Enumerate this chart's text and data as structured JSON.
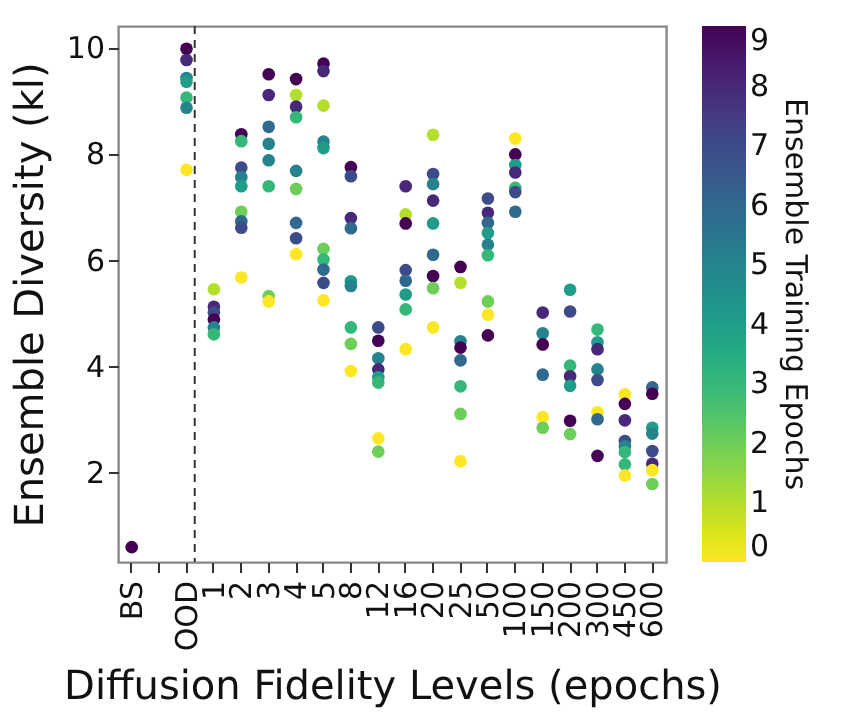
{
  "chart_data": {
    "type": "scatter",
    "xlabel": "Diffusion Fidelity Levels (epochs)",
    "ylabel": "Ensemble Diversity (kl)",
    "clabel": "Ensemble Training Epochs",
    "categories": [
      "BS",
      null,
      "OOD",
      "1",
      "2",
      "3",
      "4",
      "5",
      "8",
      "12",
      "16",
      "20",
      "25",
      "50",
      "100",
      "150",
      "200",
      "300",
      "450",
      "600"
    ],
    "ylim": [
      0.3,
      10.4
    ],
    "yticks": [
      2,
      4,
      6,
      8,
      10
    ],
    "clim": [
      0,
      9
    ],
    "cticks": [
      0,
      1,
      2,
      3,
      4,
      5,
      6,
      7,
      8,
      9
    ],
    "grid": false,
    "marker": "circle",
    "ref_lines": [
      {
        "axis": "x",
        "value": "OOD",
        "line_style": "dashed",
        "color": "#333333"
      }
    ],
    "series": [
      {
        "x": [
          "BS",
          "OOD",
          "OOD",
          "OOD",
          "OOD",
          "OOD",
          "OOD",
          "OOD",
          "1",
          "1",
          "1",
          "1",
          "1",
          "1",
          "2",
          "2",
          "2",
          "2",
          "2",
          "2",
          "2",
          "2",
          "2",
          "3",
          "3",
          "3",
          "3",
          "3",
          "3",
          "3",
          "3",
          "4",
          "4",
          "4",
          "4",
          "4",
          "4",
          "4",
          "4",
          "4",
          "5",
          "5",
          "5",
          "5",
          "5",
          "5",
          "5",
          "5",
          "5",
          "5",
          "8",
          "8",
          "8",
          "8",
          "8",
          "8",
          "8",
          "8",
          "8",
          "12",
          "12",
          "12",
          "12",
          "12",
          "12",
          "12",
          "12",
          "16",
          "16",
          "16",
          "16",
          "16",
          "16",
          "16",
          "16",
          "20",
          "20",
          "20",
          "20",
          "20",
          "20",
          "20",
          "20",
          "20",
          "25",
          "25",
          "25",
          "25",
          "25",
          "25",
          "25",
          "25",
          "50",
          "50",
          "50",
          "50",
          "50",
          "50",
          "50",
          "50",
          "50",
          "100",
          "100",
          "100",
          "100",
          "100",
          "100",
          "100",
          "150",
          "150",
          "150",
          "150",
          "150",
          "150",
          "200",
          "200",
          "200",
          "200",
          "200",
          "200",
          "200",
          "300",
          "300",
          "300",
          "300",
          "300",
          "300",
          "300",
          "300",
          "450",
          "450",
          "450",
          "450",
          "450",
          "450",
          "450",
          "450",
          "600",
          "600",
          "600",
          "600",
          "600",
          "600",
          "600",
          "600"
        ],
        "values": [
          0.58,
          9.97,
          9.76,
          9.42,
          9.35,
          9.05,
          8.86,
          7.69,
          5.44,
          5.11,
          5.0,
          4.87,
          4.72,
          4.59,
          8.36,
          8.23,
          7.73,
          7.55,
          7.38,
          6.9,
          6.72,
          6.6,
          5.66,
          9.49,
          9.1,
          8.5,
          8.18,
          7.87,
          7.38,
          5.31,
          5.21,
          9.4,
          9.1,
          8.88,
          8.68,
          7.67,
          7.33,
          6.69,
          6.4,
          6.1,
          9.69,
          9.55,
          8.9,
          8.22,
          8.1,
          6.2,
          6.0,
          5.81,
          5.56,
          5.23,
          7.74,
          7.57,
          6.78,
          6.59,
          5.59,
          5.5,
          4.72,
          4.41,
          3.9,
          4.72,
          4.47,
          4.14,
          3.93,
          3.78,
          3.68,
          2.63,
          2.38,
          7.38,
          6.85,
          6.68,
          5.8,
          5.6,
          5.34,
          5.06,
          4.31,
          8.35,
          7.61,
          7.42,
          7.11,
          6.68,
          6.09,
          5.69,
          5.46,
          4.72,
          5.86,
          5.56,
          4.46,
          4.34,
          4.1,
          3.61,
          3.09,
          2.2,
          7.15,
          6.88,
          6.69,
          6.5,
          6.28,
          6.08,
          5.21,
          4.96,
          4.57,
          8.28,
          7.98,
          7.78,
          7.64,
          7.35,
          7.27,
          6.9,
          5.0,
          4.61,
          4.4,
          3.83,
          3.03,
          2.83,
          5.43,
          5.02,
          4.0,
          3.8,
          3.62,
          2.96,
          2.71,
          4.68,
          4.44,
          4.31,
          3.93,
          3.73,
          3.12,
          2.99,
          2.3,
          3.46,
          3.28,
          2.97,
          2.58,
          2.48,
          2.37,
          2.14,
          1.93,
          3.59,
          3.47,
          2.83,
          2.72,
          2.39,
          2.15,
          2.03,
          1.77
        ],
        "cvalues": [
          9,
          9,
          8,
          5,
          4,
          3,
          5,
          0,
          1,
          8,
          7,
          9,
          5,
          3,
          9,
          3,
          7,
          5,
          4,
          2,
          6,
          7,
          0,
          9,
          8,
          6,
          5,
          5,
          3,
          2,
          0,
          9,
          1,
          8,
          3,
          5,
          2,
          6,
          7,
          0,
          9,
          8,
          1,
          5,
          4,
          2,
          3,
          6,
          7,
          0,
          9,
          7,
          8,
          6,
          4,
          5,
          3,
          2,
          0,
          7,
          9,
          5,
          8,
          4,
          3,
          0,
          2,
          8,
          1,
          9,
          7,
          6,
          4,
          3,
          0,
          1,
          7,
          5,
          8,
          4,
          6,
          9,
          2,
          0,
          9,
          1,
          5,
          9,
          6,
          3,
          2,
          0,
          7,
          8,
          6,
          4,
          5,
          3,
          2,
          0,
          9,
          0,
          9,
          4,
          8,
          3,
          7,
          6,
          8,
          5,
          9,
          6,
          0,
          2,
          4,
          7,
          3,
          8,
          4,
          9,
          2,
          3,
          4,
          8,
          5,
          7,
          0,
          6,
          9,
          0,
          9,
          8,
          7,
          5,
          3,
          3,
          0,
          6,
          9,
          4,
          5,
          7,
          8,
          0,
          2
        ]
      }
    ]
  }
}
